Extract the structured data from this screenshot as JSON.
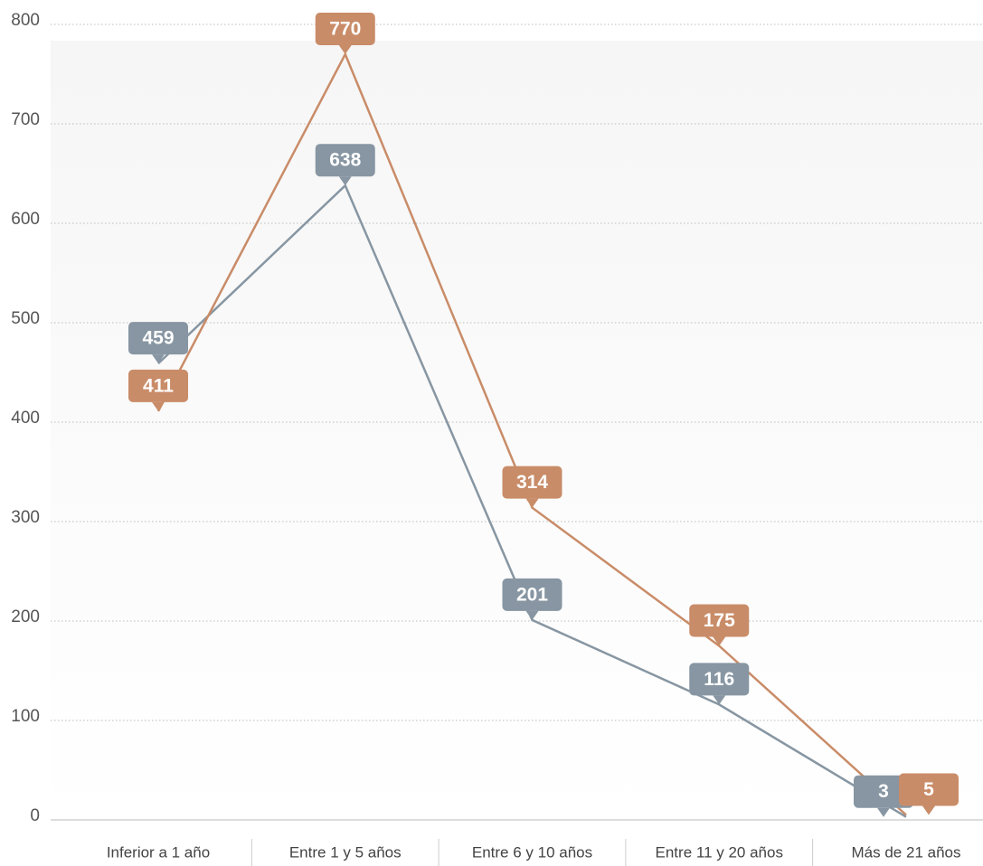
{
  "chart_data": {
    "type": "line",
    "categories": [
      "Inferior a 1 año",
      "Entre 1 y 5 años",
      "Entre 6 y 10 años",
      "Entre 11 y 20 años",
      "Más de 21 años"
    ],
    "series": [
      {
        "color": "#8796a2",
        "values": [
          459,
          638,
          201,
          116,
          3
        ]
      },
      {
        "color": "#c98c68",
        "values": [
          411,
          770,
          314,
          175,
          5
        ]
      }
    ],
    "ylim": [
      0,
      800
    ],
    "yticks": [
      0,
      100,
      200,
      300,
      400,
      500,
      600,
      700,
      800
    ],
    "grid": true
  }
}
